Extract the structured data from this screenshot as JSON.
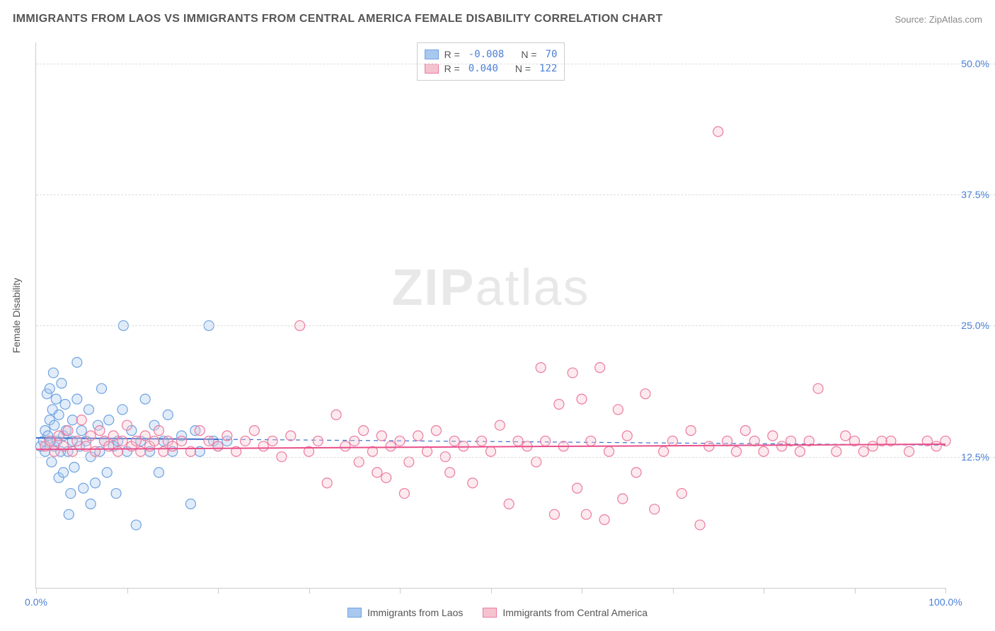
{
  "title": "IMMIGRANTS FROM LAOS VS IMMIGRANTS FROM CENTRAL AMERICA FEMALE DISABILITY CORRELATION CHART",
  "source": "Source: ZipAtlas.com",
  "watermark": "ZIPatlas",
  "y_axis_label": "Female Disability",
  "chart": {
    "type": "scatter",
    "background_color": "#ffffff",
    "grid_color": "#dddddd",
    "xlim": [
      0,
      100
    ],
    "ylim": [
      0,
      52
    ],
    "x_ticks": [
      0,
      10,
      20,
      30,
      40,
      50,
      60,
      70,
      80,
      90,
      100
    ],
    "x_tick_labels": {
      "0": "0.0%",
      "100": "100.0%"
    },
    "y_ticks": [
      12.5,
      25.0,
      37.5,
      50.0
    ],
    "y_tick_labels": [
      "12.5%",
      "25.0%",
      "37.5%",
      "50.0%"
    ],
    "marker_radius": 7,
    "marker_fill_opacity": 0.35,
    "marker_stroke_width": 1.2,
    "series": [
      {
        "name": "Immigrants from Laos",
        "color_fill": "#a9c8f0",
        "color_stroke": "#6fa3e0",
        "R": "-0.008",
        "N": "70",
        "trend": {
          "y_start": 14.3,
          "y_end": 13.6,
          "x_start": 0,
          "x_end": 100,
          "solid_until_x": 20,
          "color": "#3b6fc9",
          "width": 2
        },
        "points": [
          [
            0.5,
            13.5
          ],
          [
            0.8,
            14.0
          ],
          [
            1.0,
            15.0
          ],
          [
            1.0,
            13.0
          ],
          [
            1.2,
            18.5
          ],
          [
            1.3,
            14.5
          ],
          [
            1.5,
            16.0
          ],
          [
            1.5,
            19.0
          ],
          [
            1.6,
            14.0
          ],
          [
            1.7,
            12.0
          ],
          [
            1.8,
            17.0
          ],
          [
            1.9,
            20.5
          ],
          [
            2.0,
            13.5
          ],
          [
            2.0,
            15.5
          ],
          [
            2.2,
            18.0
          ],
          [
            2.3,
            14.0
          ],
          [
            2.5,
            16.5
          ],
          [
            2.5,
            10.5
          ],
          [
            2.7,
            13.0
          ],
          [
            2.8,
            19.5
          ],
          [
            3.0,
            14.5
          ],
          [
            3.0,
            11.0
          ],
          [
            3.2,
            17.5
          ],
          [
            3.3,
            15.0
          ],
          [
            3.5,
            13.0
          ],
          [
            3.6,
            7.0
          ],
          [
            3.8,
            9.0
          ],
          [
            4.0,
            16.0
          ],
          [
            4.0,
            14.0
          ],
          [
            4.2,
            11.5
          ],
          [
            4.5,
            18.0
          ],
          [
            4.5,
            21.5
          ],
          [
            4.8,
            13.5
          ],
          [
            5.0,
            15.0
          ],
          [
            5.2,
            9.5
          ],
          [
            5.5,
            14.0
          ],
          [
            5.8,
            17.0
          ],
          [
            6.0,
            12.5
          ],
          [
            6.0,
            8.0
          ],
          [
            6.5,
            10.0
          ],
          [
            6.8,
            15.5
          ],
          [
            7.0,
            13.0
          ],
          [
            7.2,
            19.0
          ],
          [
            7.5,
            14.0
          ],
          [
            7.8,
            11.0
          ],
          [
            8.0,
            16.0
          ],
          [
            8.5,
            13.5
          ],
          [
            8.8,
            9.0
          ],
          [
            9.0,
            14.0
          ],
          [
            9.5,
            17.0
          ],
          [
            9.6,
            25.0
          ],
          [
            10.0,
            13.0
          ],
          [
            10.5,
            15.0
          ],
          [
            11.0,
            6.0
          ],
          [
            11.5,
            14.0
          ],
          [
            12.0,
            18.0
          ],
          [
            12.5,
            13.0
          ],
          [
            13.0,
            15.5
          ],
          [
            13.5,
            11.0
          ],
          [
            14.0,
            14.0
          ],
          [
            14.5,
            16.5
          ],
          [
            15.0,
            13.0
          ],
          [
            16.0,
            14.5
          ],
          [
            17.0,
            8.0
          ],
          [
            17.5,
            15.0
          ],
          [
            18.0,
            13.0
          ],
          [
            19.0,
            25.0
          ],
          [
            19.5,
            14.0
          ],
          [
            20.0,
            13.5
          ],
          [
            21.0,
            14.0
          ]
        ]
      },
      {
        "name": "Immigrants from Central America",
        "color_fill": "#f5c2cf",
        "color_stroke": "#eb7ba0",
        "R": "0.040",
        "N": "122",
        "trend": {
          "y_start": 13.2,
          "y_end": 13.7,
          "x_start": 0,
          "x_end": 100,
          "solid_until_x": 100,
          "color": "#e94f8a",
          "width": 2
        },
        "points": [
          [
            1.0,
            13.5
          ],
          [
            1.5,
            14.0
          ],
          [
            2.0,
            13.0
          ],
          [
            2.5,
            14.5
          ],
          [
            3.0,
            13.5
          ],
          [
            3.5,
            15.0
          ],
          [
            4.0,
            13.0
          ],
          [
            4.5,
            14.0
          ],
          [
            5.0,
            16.0
          ],
          [
            5.5,
            13.5
          ],
          [
            6.0,
            14.5
          ],
          [
            6.5,
            13.0
          ],
          [
            7.0,
            15.0
          ],
          [
            7.5,
            14.0
          ],
          [
            8.0,
            13.5
          ],
          [
            8.5,
            14.5
          ],
          [
            9.0,
            13.0
          ],
          [
            9.5,
            14.0
          ],
          [
            10.0,
            15.5
          ],
          [
            10.5,
            13.5
          ],
          [
            11.0,
            14.0
          ],
          [
            11.5,
            13.0
          ],
          [
            12.0,
            14.5
          ],
          [
            12.5,
            13.5
          ],
          [
            13.0,
            14.0
          ],
          [
            13.5,
            15.0
          ],
          [
            14.0,
            13.0
          ],
          [
            14.5,
            14.0
          ],
          [
            15.0,
            13.5
          ],
          [
            16.0,
            14.0
          ],
          [
            17.0,
            13.0
          ],
          [
            18.0,
            15.0
          ],
          [
            19.0,
            14.0
          ],
          [
            20.0,
            13.5
          ],
          [
            21.0,
            14.5
          ],
          [
            22.0,
            13.0
          ],
          [
            23.0,
            14.0
          ],
          [
            24.0,
            15.0
          ],
          [
            25.0,
            13.5
          ],
          [
            26.0,
            14.0
          ],
          [
            27.0,
            12.5
          ],
          [
            28.0,
            14.5
          ],
          [
            29.0,
            25.0
          ],
          [
            30.0,
            13.0
          ],
          [
            31.0,
            14.0
          ],
          [
            32.0,
            10.0
          ],
          [
            33.0,
            16.5
          ],
          [
            34.0,
            13.5
          ],
          [
            35.0,
            14.0
          ],
          [
            35.5,
            12.0
          ],
          [
            36.0,
            15.0
          ],
          [
            37.0,
            13.0
          ],
          [
            37.5,
            11.0
          ],
          [
            38.0,
            14.5
          ],
          [
            38.5,
            10.5
          ],
          [
            39.0,
            13.5
          ],
          [
            40.0,
            14.0
          ],
          [
            40.5,
            9.0
          ],
          [
            41.0,
            12.0
          ],
          [
            42.0,
            14.5
          ],
          [
            43.0,
            13.0
          ],
          [
            44.0,
            15.0
          ],
          [
            45.0,
            12.5
          ],
          [
            45.5,
            11.0
          ],
          [
            46.0,
            14.0
          ],
          [
            47.0,
            13.5
          ],
          [
            48.0,
            10.0
          ],
          [
            49.0,
            14.0
          ],
          [
            50.0,
            13.0
          ],
          [
            51.0,
            15.5
          ],
          [
            52.0,
            8.0
          ],
          [
            53.0,
            14.0
          ],
          [
            54.0,
            13.5
          ],
          [
            55.0,
            12.0
          ],
          [
            55.5,
            21.0
          ],
          [
            56.0,
            14.0
          ],
          [
            57.0,
            7.0
          ],
          [
            57.5,
            17.5
          ],
          [
            58.0,
            13.5
          ],
          [
            59.0,
            20.5
          ],
          [
            59.5,
            9.5
          ],
          [
            60.0,
            18.0
          ],
          [
            60.5,
            7.0
          ],
          [
            61.0,
            14.0
          ],
          [
            62.0,
            21.0
          ],
          [
            62.5,
            6.5
          ],
          [
            63.0,
            13.0
          ],
          [
            64.0,
            17.0
          ],
          [
            64.5,
            8.5
          ],
          [
            65.0,
            14.5
          ],
          [
            66.0,
            11.0
          ],
          [
            67.0,
            18.5
          ],
          [
            68.0,
            7.5
          ],
          [
            69.0,
            13.0
          ],
          [
            70.0,
            14.0
          ],
          [
            71.0,
            9.0
          ],
          [
            72.0,
            15.0
          ],
          [
            73.0,
            6.0
          ],
          [
            74.0,
            13.5
          ],
          [
            75.0,
            43.5
          ],
          [
            76.0,
            14.0
          ],
          [
            77.0,
            13.0
          ],
          [
            78.0,
            15.0
          ],
          [
            79.0,
            14.0
          ],
          [
            80.0,
            13.0
          ],
          [
            81.0,
            14.5
          ],
          [
            82.0,
            13.5
          ],
          [
            83.0,
            14.0
          ],
          [
            84.0,
            13.0
          ],
          [
            85.0,
            14.0
          ],
          [
            86.0,
            19.0
          ],
          [
            90.0,
            14.0
          ],
          [
            92.0,
            13.5
          ],
          [
            94.0,
            14.0
          ],
          [
            96.0,
            13.0
          ],
          [
            98.0,
            14.0
          ],
          [
            99.0,
            13.5
          ],
          [
            100.0,
            14.0
          ],
          [
            88.0,
            13.0
          ],
          [
            89.0,
            14.5
          ],
          [
            91.0,
            13.0
          ],
          [
            93.0,
            14.0
          ]
        ]
      }
    ]
  },
  "legend_top": [
    {
      "swatch_fill": "#a9c8f0",
      "swatch_stroke": "#6fa3e0",
      "R_label": "R =",
      "R": "-0.008",
      "N_label": "N =",
      "N": "70"
    },
    {
      "swatch_fill": "#f5c2cf",
      "swatch_stroke": "#eb7ba0",
      "R_label": "R =",
      "R": "0.040",
      "N_label": "N =",
      "N": "122"
    }
  ],
  "legend_bottom": [
    {
      "swatch_fill": "#a9c8f0",
      "swatch_stroke": "#6fa3e0",
      "label": "Immigrants from Laos"
    },
    {
      "swatch_fill": "#f5c2cf",
      "swatch_stroke": "#eb7ba0",
      "label": "Immigrants from Central America"
    }
  ]
}
